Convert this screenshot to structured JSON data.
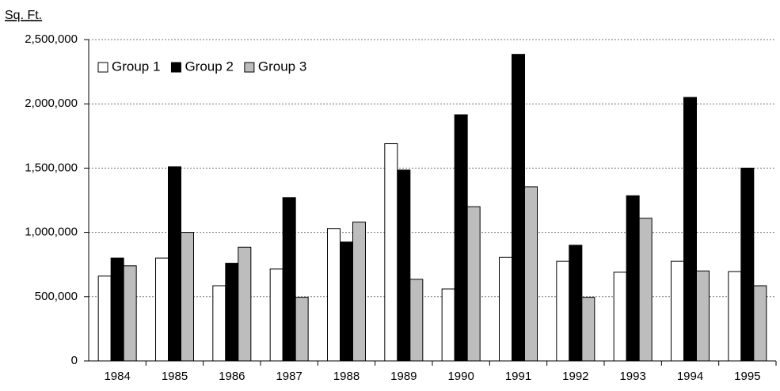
{
  "chart_data": {
    "type": "bar",
    "title": "Sq. Ft.",
    "categories": [
      "1984",
      "1985",
      "1986",
      "1987",
      "1988",
      "1989",
      "1990",
      "1991",
      "1992",
      "1993",
      "1994",
      "1995"
    ],
    "series": [
      {
        "name": "Group 1",
        "color": "#ffffff",
        "values": [
          660000,
          800000,
          585000,
          715000,
          1030000,
          1690000,
          560000,
          805000,
          775000,
          690000,
          775000,
          695000
        ]
      },
      {
        "name": "Group 2",
        "color": "#000000",
        "values": [
          800000,
          1510000,
          760000,
          1270000,
          925000,
          1485000,
          1915000,
          2385000,
          900000,
          1285000,
          2050000,
          1500000
        ]
      },
      {
        "name": "Group 3",
        "color": "#bdbdbd",
        "values": [
          740000,
          1000000,
          885000,
          495000,
          1080000,
          635000,
          1200000,
          1355000,
          495000,
          1110000,
          700000,
          585000
        ]
      }
    ],
    "ylim": [
      0,
      2500000
    ],
    "yticks": [
      0,
      {
        "value": 500000,
        "label": "500,000"
      },
      {
        "value": 1000000,
        "label": "1,000,000"
      },
      {
        "value": 1500000,
        "label": "1,500,000"
      },
      {
        "value": 2000000,
        "label": "2,000,000"
      },
      {
        "value": 2500000,
        "label": "2,500,000"
      }
    ],
    "grid": true,
    "legend": "top-left"
  }
}
